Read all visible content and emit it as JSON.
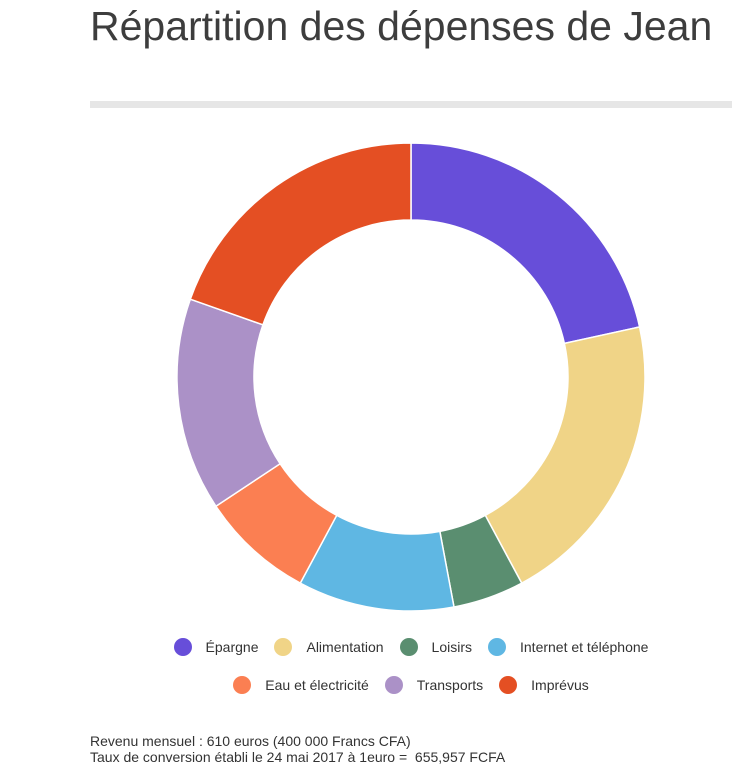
{
  "title": "Répartition des dépenses de Jean",
  "chart_data": {
    "type": "pie",
    "subtype": "donut",
    "categories": [
      "Épargne",
      "Alimentation",
      "Loisirs",
      "Internet et téléphone",
      "Eau et électricité",
      "Transports",
      "Imprévus"
    ],
    "values": [
      22,
      21,
      5,
      11,
      8,
      15,
      20
    ],
    "colors": [
      "#674ed9",
      "#f0d487",
      "#5a8e70",
      "#5fb7e3",
      "#fb7f52",
      "#ab91c7",
      "#e44f23"
    ],
    "legend_position": "bottom"
  },
  "notes": {
    "line1": "Revenu mensuel : 610 euros (400 000 Francs CFA)",
    "line2": "Taux de conversion établi le 24 mai 2017 à 1euro =  655,957 FCFA"
  }
}
